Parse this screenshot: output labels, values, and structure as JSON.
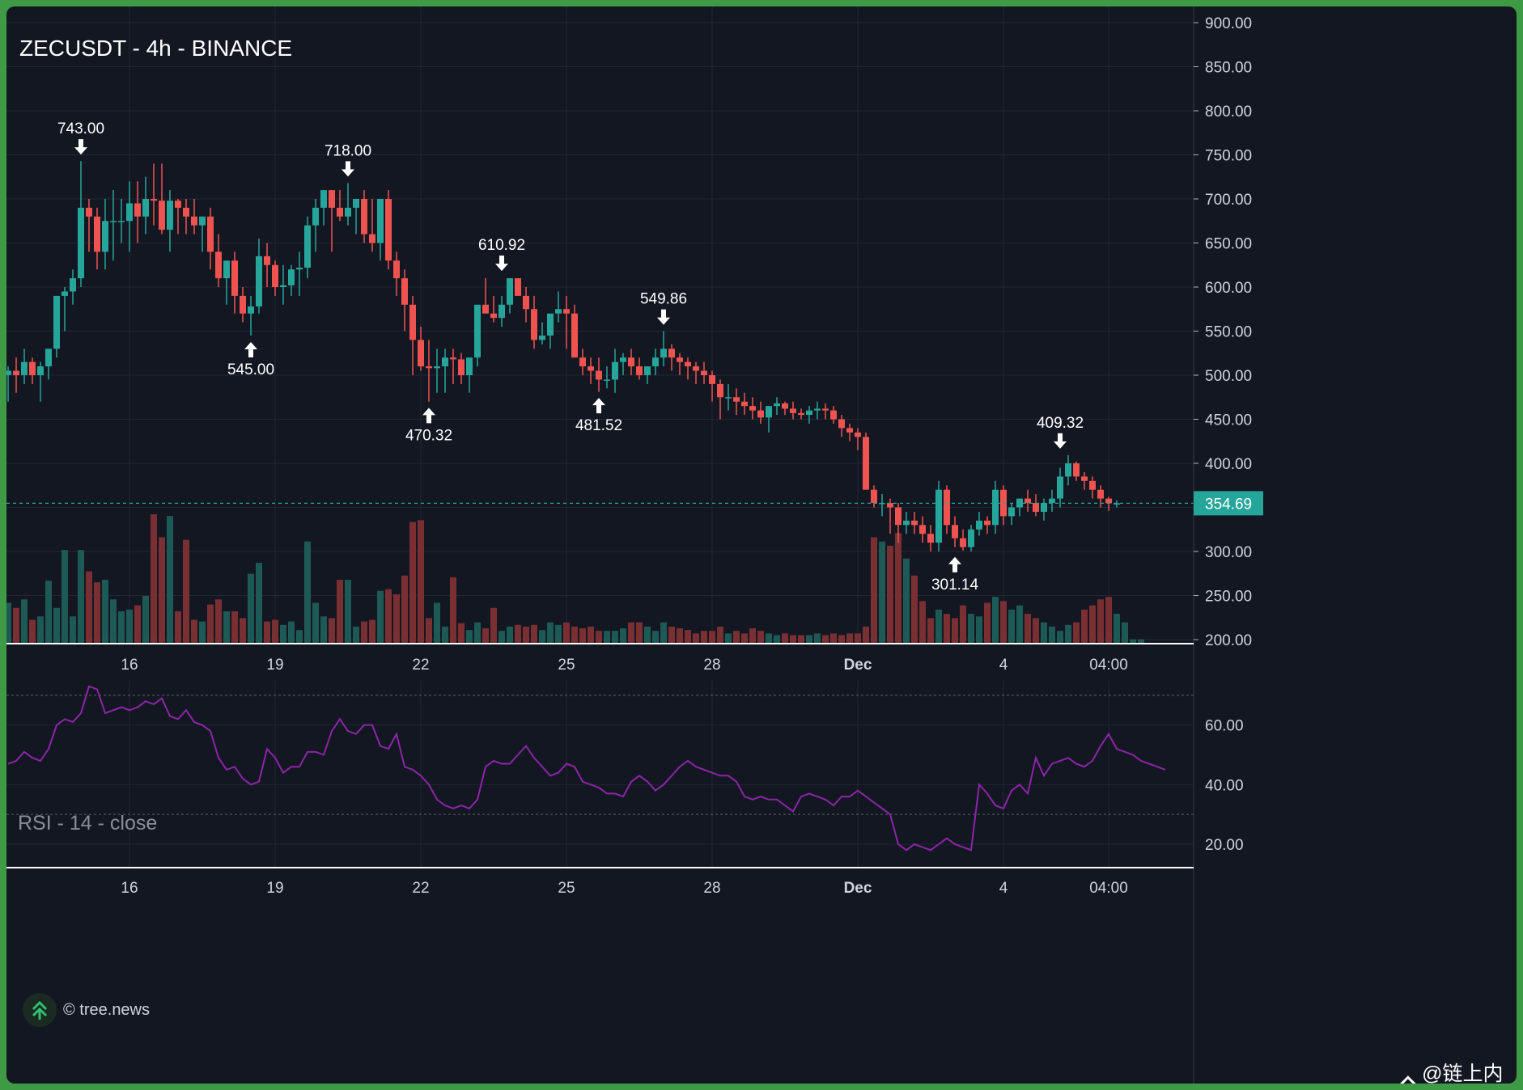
{
  "chart_data": [
    {
      "type": "candlestick",
      "title": "ZECUSDT - 4h - BINANCE",
      "y_axis_position": "right",
      "ylim": [
        200,
        900
      ],
      "y_ticks": [
        "900.00",
        "850.00",
        "800.00",
        "750.00",
        "700.00",
        "650.00",
        "600.00",
        "550.00",
        "500.00",
        "450.00",
        "400.00",
        "350.00",
        "300.00",
        "250.00",
        "200.00"
      ],
      "x_ticks": [
        {
          "label": "16",
          "bold": false
        },
        {
          "label": "19",
          "bold": false
        },
        {
          "label": "22",
          "bold": false
        },
        {
          "label": "25",
          "bold": false
        },
        {
          "label": "28",
          "bold": false
        },
        {
          "label": "Dec",
          "bold": true
        },
        {
          "label": "4",
          "bold": false
        },
        {
          "label": "04:00",
          "bold": false
        }
      ],
      "last_price": "354.69",
      "last_price_value": 354.69,
      "colors": {
        "up": "#26a69a",
        "down": "#ef5350",
        "vol_up": "#1e5a55",
        "vol_down": "#7a2f33",
        "price_line": "#26a69a"
      },
      "annotations": [
        {
          "label": "743.00",
          "value": 743.0,
          "dir": "high",
          "bar": 9
        },
        {
          "label": "545.00",
          "value": 545.0,
          "dir": "low",
          "bar": 30
        },
        {
          "label": "718.00",
          "value": 718.0,
          "dir": "high",
          "bar": 42
        },
        {
          "label": "470.32",
          "value": 470.32,
          "dir": "low",
          "bar": 52
        },
        {
          "label": "610.92",
          "value": 610.92,
          "dir": "high",
          "bar": 61
        },
        {
          "label": "481.52",
          "value": 481.52,
          "dir": "low",
          "bar": 73
        },
        {
          "label": "549.86",
          "value": 549.86,
          "dir": "high",
          "bar": 81
        },
        {
          "label": "301.14",
          "value": 301.14,
          "dir": "low",
          "bar": 117
        },
        {
          "label": "409.32",
          "value": 409.32,
          "dir": "high",
          "bar": 130
        }
      ],
      "bars": [
        [
          500,
          510,
          470,
          505
        ],
        [
          505,
          520,
          480,
          500
        ],
        [
          500,
          530,
          490,
          515
        ],
        [
          515,
          520,
          490,
          500
        ],
        [
          500,
          515,
          470,
          510
        ],
        [
          510,
          530,
          495,
          530
        ],
        [
          530,
          560,
          520,
          590
        ],
        [
          590,
          600,
          550,
          595
        ],
        [
          595,
          620,
          580,
          610
        ],
        [
          610,
          743,
          600,
          690
        ],
        [
          690,
          700,
          640,
          680
        ],
        [
          680,
          690,
          620,
          640
        ],
        [
          640,
          700,
          620,
          675
        ],
        [
          675,
          710,
          630,
          675
        ],
        [
          675,
          700,
          650,
          675
        ],
        [
          675,
          720,
          640,
          695
        ],
        [
          695,
          720,
          650,
          680
        ],
        [
          680,
          725,
          660,
          700
        ],
        [
          700,
          740,
          670,
          698
        ],
        [
          698,
          740,
          660,
          665
        ],
        [
          665,
          710,
          640,
          698
        ],
        [
          698,
          700,
          660,
          690
        ],
        [
          690,
          700,
          660,
          680
        ],
        [
          680,
          700,
          660,
          670
        ],
        [
          670,
          680,
          640,
          680
        ],
        [
          680,
          690,
          620,
          640
        ],
        [
          640,
          660,
          600,
          610
        ],
        [
          610,
          630,
          580,
          630
        ],
        [
          630,
          640,
          570,
          590
        ],
        [
          590,
          600,
          560,
          570
        ],
        [
          570,
          590,
          545,
          578
        ],
        [
          578,
          655,
          570,
          635
        ],
        [
          635,
          650,
          600,
          625
        ],
        [
          625,
          630,
          590,
          600
        ],
        [
          600,
          625,
          580,
          602
        ],
        [
          602,
          625,
          590,
          620
        ],
        [
          620,
          640,
          590,
          622
        ],
        [
          622,
          680,
          610,
          670
        ],
        [
          670,
          700,
          640,
          690
        ],
        [
          690,
          710,
          670,
          710
        ],
        [
          710,
          705,
          640,
          690
        ],
        [
          690,
          710,
          675,
          680
        ],
        [
          680,
          718,
          670,
          690
        ],
        [
          690,
          700,
          660,
          700
        ],
        [
          700,
          710,
          650,
          660
        ],
        [
          660,
          700,
          640,
          650
        ],
        [
          650,
          690,
          630,
          700
        ],
        [
          700,
          710,
          620,
          630
        ],
        [
          630,
          640,
          590,
          610
        ],
        [
          610,
          620,
          550,
          580
        ],
        [
          580,
          590,
          500,
          540
        ],
        [
          540,
          555,
          505,
          510
        ],
        [
          510,
          540,
          470,
          508
        ],
        [
          508,
          530,
          480,
          510
        ],
        [
          510,
          530,
          480,
          520
        ],
        [
          520,
          530,
          490,
          518
        ],
        [
          518,
          525,
          490,
          500
        ],
        [
          500,
          510,
          480,
          520
        ],
        [
          520,
          560,
          510,
          580
        ],
        [
          580,
          610,
          570,
          570
        ],
        [
          570,
          590,
          560,
          565
        ],
        [
          565,
          590,
          555,
          580
        ],
        [
          580,
          610,
          570,
          610
        ],
        [
          610,
          610,
          590,
          590
        ],
        [
          590,
          600,
          560,
          575
        ],
        [
          575,
          590,
          530,
          540
        ],
        [
          540,
          560,
          535,
          545
        ],
        [
          545,
          560,
          530,
          570
        ],
        [
          570,
          595,
          560,
          575
        ],
        [
          575,
          590,
          530,
          570
        ],
        [
          570,
          580,
          520,
          520
        ],
        [
          520,
          530,
          500,
          510
        ],
        [
          510,
          520,
          490,
          505
        ],
        [
          505,
          520,
          481,
          495
        ],
        [
          495,
          510,
          485,
          495
        ],
        [
          495,
          530,
          480,
          515
        ],
        [
          515,
          525,
          500,
          520
        ],
        [
          520,
          530,
          500,
          510
        ],
        [
          510,
          520,
          495,
          500
        ],
        [
          500,
          510,
          490,
          510
        ],
        [
          510,
          530,
          500,
          520
        ],
        [
          520,
          549.86,
          510,
          530
        ],
        [
          530,
          535,
          505,
          520
        ],
        [
          520,
          525,
          500,
          515
        ],
        [
          515,
          520,
          495,
          510
        ],
        [
          510,
          515,
          490,
          505
        ],
        [
          505,
          515,
          490,
          500
        ],
        [
          500,
          505,
          470,
          490
        ],
        [
          490,
          495,
          450,
          475
        ],
        [
          475,
          490,
          460,
          475
        ],
        [
          475,
          485,
          455,
          470
        ],
        [
          470,
          480,
          455,
          465
        ],
        [
          465,
          475,
          450,
          460
        ],
        [
          460,
          470,
          445,
          452
        ],
        [
          452,
          465,
          435,
          465
        ],
        [
          465,
          475,
          455,
          468
        ],
        [
          468,
          470,
          455,
          462
        ],
        [
          462,
          470,
          450,
          457
        ],
        [
          457,
          462,
          450,
          455
        ],
        [
          455,
          465,
          445,
          460
        ],
        [
          460,
          470,
          450,
          462
        ],
        [
          462,
          468,
          450,
          460
        ],
        [
          460,
          465,
          445,
          450
        ],
        [
          450,
          455,
          430,
          440
        ],
        [
          440,
          445,
          425,
          435
        ],
        [
          435,
          440,
          415,
          430
        ],
        [
          430,
          435,
          375,
          370
        ],
        [
          370,
          375,
          350,
          355
        ],
        [
          355,
          365,
          340,
          355
        ],
        [
          355,
          360,
          320,
          350
        ],
        [
          350,
          355,
          310,
          330
        ],
        [
          330,
          345,
          320,
          335
        ],
        [
          335,
          345,
          320,
          330
        ],
        [
          330,
          340,
          310,
          320
        ],
        [
          320,
          330,
          300,
          310
        ],
        [
          310,
          380,
          300,
          370
        ],
        [
          370,
          375,
          320,
          330
        ],
        [
          330,
          340,
          305,
          315
        ],
        [
          315,
          325,
          301.14,
          305
        ],
        [
          305,
          330,
          300,
          325
        ],
        [
          325,
          345,
          318,
          335
        ],
        [
          335,
          340,
          320,
          330
        ],
        [
          330,
          380,
          320,
          370
        ],
        [
          370,
          375,
          330,
          340
        ],
        [
          340,
          355,
          330,
          350
        ],
        [
          350,
          360,
          340,
          360
        ],
        [
          360,
          370,
          345,
          355
        ],
        [
          355,
          365,
          340,
          345
        ],
        [
          345,
          360,
          335,
          355
        ],
        [
          355,
          370,
          345,
          360
        ],
        [
          360,
          395,
          350,
          385
        ],
        [
          385,
          409.32,
          375,
          400
        ],
        [
          400,
          402,
          380,
          385
        ],
        [
          385,
          390,
          370,
          380
        ],
        [
          380,
          385,
          360,
          370
        ],
        [
          370,
          375,
          350,
          360
        ],
        [
          360,
          362,
          346,
          354.69
        ],
        [
          354.69,
          358,
          350,
          354.69
        ]
      ],
      "volume": [
        48,
        42,
        52,
        28,
        32,
        74,
        42,
        110,
        32,
        110,
        85,
        72,
        75,
        52,
        38,
        40,
        45,
        56,
        152,
        125,
        150,
        38,
        122,
        28,
        26,
        46,
        52,
        38,
        38,
        30,
        82,
        95,
        26,
        28,
        22,
        26,
        16,
        120,
        48,
        32,
        30,
        75,
        75,
        20,
        26,
        28,
        62,
        64,
        58,
        80,
        143,
        145,
        30,
        48,
        20,
        78,
        24,
        16,
        25,
        18,
        42,
        15,
        20,
        22,
        20,
        22,
        16,
        25,
        22,
        25,
        20,
        18,
        20,
        15,
        15,
        15,
        18,
        25,
        25,
        20,
        15,
        25,
        20,
        18,
        16,
        12,
        15,
        15,
        20,
        12,
        15,
        12,
        18,
        15,
        12,
        10,
        12,
        10,
        10,
        10,
        12,
        10,
        12,
        10,
        12,
        12,
        20,
        125,
        120,
        115,
        130,
        100,
        80,
        50,
        30,
        40,
        35,
        30,
        45,
        35,
        32,
        48,
        55,
        50,
        40,
        45,
        35,
        30,
        25,
        20,
        15,
        22,
        25,
        40,
        45,
        52,
        55,
        35,
        25,
        5,
        5
      ],
      "volume_direction": "per-candle",
      "volume_scale_max": 152
    },
    {
      "type": "line",
      "title": "RSI - 14 - close",
      "y_axis_position": "right",
      "ylim": [
        11,
        74
      ],
      "y_ticks": [
        "60.00",
        "40.00",
        "20.00"
      ],
      "bands": [
        70,
        30
      ],
      "x_ticks": [
        "16",
        "19",
        "22",
        "25",
        "28",
        "Dec",
        "4",
        "04:00"
      ],
      "line_color": "#8e24aa",
      "values": [
        47,
        48,
        51,
        49,
        48,
        52,
        60,
        62,
        61,
        64,
        73,
        72,
        64,
        65,
        66,
        65,
        66,
        68,
        67,
        69,
        63,
        62,
        65,
        61,
        60,
        58,
        49,
        45,
        46,
        42,
        40,
        41,
        52,
        49,
        44,
        46,
        46,
        51,
        51,
        50,
        58,
        62,
        58,
        57,
        60,
        60,
        53,
        52,
        57,
        46,
        45,
        43,
        40,
        35,
        33,
        32,
        33,
        32,
        35,
        46,
        48,
        47,
        47,
        50,
        53,
        49,
        46,
        43,
        44,
        47,
        46,
        41,
        40,
        39,
        37,
        37,
        36,
        41,
        43,
        41,
        38,
        40,
        43,
        46,
        48,
        46,
        45,
        44,
        43,
        43,
        41,
        36,
        35,
        36,
        35,
        35,
        33,
        31,
        36,
        37,
        36,
        35,
        33,
        36,
        36,
        38,
        36,
        34,
        32,
        30,
        20,
        18,
        20,
        19,
        18,
        20,
        22,
        20,
        19,
        18,
        40,
        37,
        33,
        32,
        38,
        40,
        37,
        49,
        43,
        47,
        48,
        49,
        47,
        46,
        48,
        53,
        57,
        52,
        51,
        50,
        48,
        47,
        46,
        45
      ]
    }
  ],
  "credit_text": "© tree.news",
  "watermark_text": "@链上内幕"
}
